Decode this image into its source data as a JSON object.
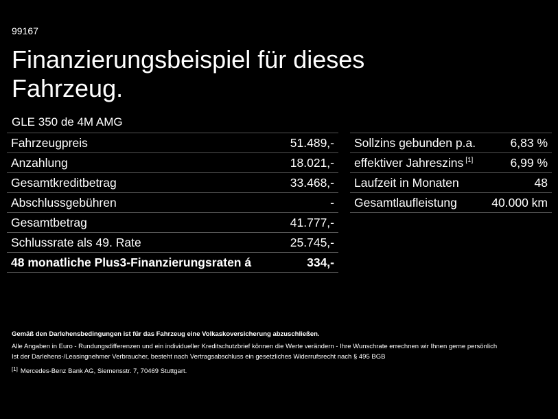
{
  "header": {
    "id": "99167",
    "title": "Finanzierungsbeispiel für dieses Fahrzeug.",
    "model": "GLE 350 de 4M AMG"
  },
  "left_table": {
    "rows": [
      {
        "label": "Fahrzeugpreis",
        "value": "51.489,-"
      },
      {
        "label": "Anzahlung",
        "value": "18.021,-"
      },
      {
        "label": "Gesamtkreditbetrag",
        "value": "33.468,-"
      },
      {
        "label": "Abschlussgebühren",
        "value": "-"
      },
      {
        "label": "Gesamtbetrag",
        "value": "41.777,-"
      },
      {
        "label": "Schlussrate als 49. Rate",
        "value": "25.745,-"
      },
      {
        "label": "48 monatliche Plus3-Finanzierungsraten á",
        "value": "334,-"
      }
    ]
  },
  "right_table": {
    "rows": [
      {
        "label": "Sollzins gebunden p.a.",
        "value": "6,83 %"
      },
      {
        "label": "effektiver Jahreszins",
        "note": "[1]",
        "value": "6,99 %"
      },
      {
        "label": "Laufzeit in Monaten",
        "value": "48"
      },
      {
        "label": "Gesamtlaufleistung",
        "value": "40.000 km"
      }
    ]
  },
  "footer": {
    "bold_note": "Gemäß den Darlehensbedingungen ist für das Fahrzeug eine Volkaskoversicherung abzuschließen.",
    "lines": [
      "Alle Angaben in Euro - Rundungsdifferenzen und ein individueller Kreditschutzbrief können die Werte verändern - Ihre Wunschrate errechnen wir Ihnen gerne persönlich",
      "Ist der Darlehens-/Leasingnehmer Verbraucher, besteht nach Vertragsabschluss ein gesetzliches Widerrufsrecht nach § 495 BGB"
    ],
    "footnote": {
      "mark": "[1]",
      "text": "Mercedes-Benz Bank AG, Siemensstr. 7, 70469 Stuttgart."
    }
  }
}
